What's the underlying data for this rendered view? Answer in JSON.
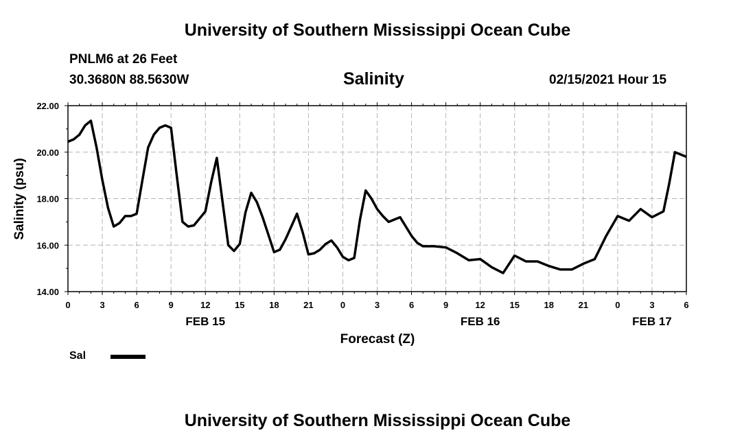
{
  "header": {
    "title": "University of Southern Mississippi Ocean Cube",
    "station": "PNLM6 at 26 Feet",
    "coordinates": "30.3680N 88.5630W",
    "timestamp": "02/15/2021 Hour 15"
  },
  "footer": {
    "title": "University of Southern Mississippi Ocean Cube"
  },
  "legend": {
    "label": "Sal",
    "color": "#000000"
  },
  "chart_data": {
    "type": "line",
    "title": "Salinity",
    "xlabel": "Forecast (Z)",
    "ylabel": "Salinity (psu)",
    "grid": true,
    "ylim": [
      14,
      22
    ],
    "y_ticks": [
      "14.00",
      "16.00",
      "18.00",
      "20.00",
      "22.00"
    ],
    "xlim_hours": [
      0,
      54
    ],
    "x_ticks": [
      {
        "h": 0,
        "label": "0"
      },
      {
        "h": 3,
        "label": "3"
      },
      {
        "h": 6,
        "label": "6"
      },
      {
        "h": 9,
        "label": "9"
      },
      {
        "h": 12,
        "label": "12"
      },
      {
        "h": 15,
        "label": "15"
      },
      {
        "h": 18,
        "label": "18"
      },
      {
        "h": 21,
        "label": "21"
      },
      {
        "h": 24,
        "label": "0"
      },
      {
        "h": 27,
        "label": "3"
      },
      {
        "h": 30,
        "label": "6"
      },
      {
        "h": 33,
        "label": "9"
      },
      {
        "h": 36,
        "label": "12"
      },
      {
        "h": 39,
        "label": "15"
      },
      {
        "h": 42,
        "label": "18"
      },
      {
        "h": 45,
        "label": "21"
      },
      {
        "h": 48,
        "label": "0"
      },
      {
        "h": 51,
        "label": "3"
      },
      {
        "h": 54,
        "label": "6"
      }
    ],
    "date_labels": [
      {
        "h": 12,
        "label": "FEB 15"
      },
      {
        "h": 36,
        "label": "FEB 16"
      },
      {
        "h": 51,
        "label": "FEB 17"
      }
    ],
    "series": [
      {
        "name": "Sal",
        "color": "#000000",
        "x": [
          0,
          0.5,
          1,
          1.5,
          2,
          2.5,
          3,
          3.5,
          4,
          4.5,
          5,
          5.5,
          6,
          6.5,
          7,
          7.5,
          8,
          8.5,
          9,
          9.5,
          10,
          10.5,
          11,
          11.5,
          12,
          12.5,
          13,
          13.5,
          14,
          14.5,
          15,
          15.5,
          16,
          16.5,
          17,
          17.5,
          18,
          18.5,
          19,
          19.5,
          20,
          20.5,
          21,
          21.5,
          22,
          22.5,
          23,
          23.5,
          24,
          24.5,
          25,
          25.5,
          26,
          26.5,
          27,
          27.5,
          28,
          28.5,
          29,
          29.5,
          30,
          30.5,
          31,
          32,
          33,
          34,
          35,
          36,
          37,
          38,
          39,
          40,
          41,
          42,
          43,
          44,
          45,
          46,
          47,
          48,
          49,
          50,
          51,
          52,
          52.5,
          53,
          54
        ],
        "values": [
          20.45,
          20.55,
          20.75,
          21.15,
          21.35,
          20.2,
          18.8,
          17.6,
          16.8,
          16.95,
          17.25,
          17.25,
          17.35,
          18.8,
          20.2,
          20.75,
          21.05,
          21.15,
          21.05,
          19.0,
          17.0,
          16.8,
          16.85,
          17.15,
          17.45,
          18.7,
          19.75,
          17.85,
          16.0,
          15.75,
          16.05,
          17.4,
          18.25,
          17.85,
          17.2,
          16.45,
          15.7,
          15.8,
          16.25,
          16.8,
          17.35,
          16.55,
          15.6,
          15.65,
          15.8,
          16.05,
          16.2,
          15.9,
          15.5,
          15.35,
          15.45,
          17.1,
          18.35,
          18.0,
          17.55,
          17.25,
          17.0,
          17.1,
          17.2,
          16.8,
          16.4,
          16.1,
          15.95,
          15.95,
          15.9,
          15.65,
          15.35,
          15.4,
          15.05,
          14.8,
          15.55,
          15.3,
          15.3,
          15.1,
          14.95,
          14.95,
          15.2,
          15.4,
          16.4,
          17.25,
          17.05,
          17.55,
          17.2,
          17.45,
          18.65,
          20.0,
          19.8
        ]
      }
    ]
  }
}
